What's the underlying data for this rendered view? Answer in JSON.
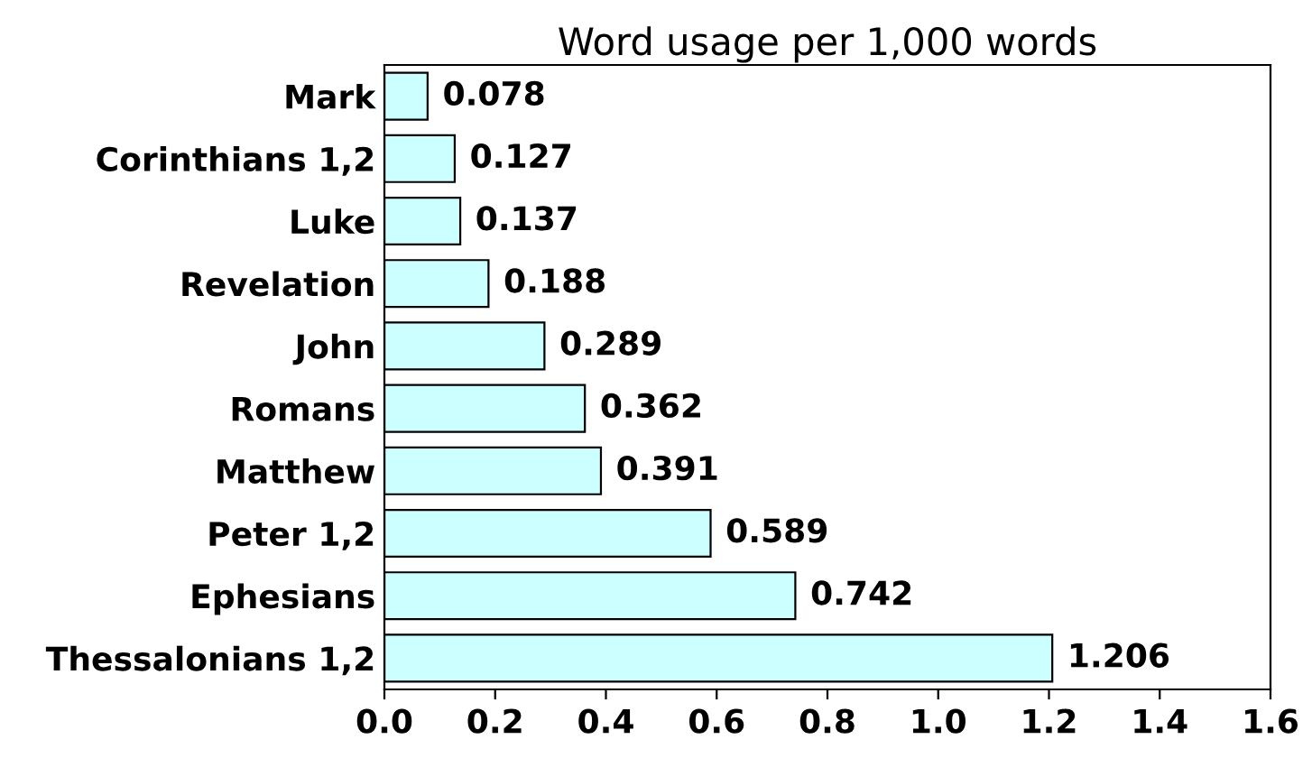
{
  "chart_data": {
    "type": "bar",
    "orientation": "horizontal",
    "title": "Word usage per 1,000 words",
    "categories": [
      "Mark",
      "Corinthians 1,2",
      "Luke",
      "Revelation",
      "John",
      "Romans",
      "Matthew",
      "Peter 1,2",
      "Ephesians",
      "Thessalonians 1,2"
    ],
    "values": [
      0.078,
      0.127,
      0.137,
      0.188,
      0.289,
      0.362,
      0.391,
      0.589,
      0.742,
      1.206
    ],
    "value_labels": [
      "0.078",
      "0.127",
      "0.137",
      "0.188",
      "0.289",
      "0.362",
      "0.391",
      "0.589",
      "0.742",
      "1.206"
    ],
    "color": "#ccffff",
    "xlim": [
      0,
      1.6
    ],
    "xticks": [
      {
        "value": 0,
        "label": "0.0"
      },
      {
        "value": 0.2,
        "label": "0.2"
      },
      {
        "value": 0.4,
        "label": "0.4"
      },
      {
        "value": 0.6,
        "label": "0.6"
      },
      {
        "value": 0.8,
        "label": "0.8"
      },
      {
        "value": 1.0,
        "label": "1.0"
      },
      {
        "value": 1.2,
        "label": "1.2"
      },
      {
        "value": 1.4,
        "label": "1.4"
      },
      {
        "value": 1.6,
        "label": "1.6"
      }
    ],
    "grid": false,
    "legend": false
  }
}
